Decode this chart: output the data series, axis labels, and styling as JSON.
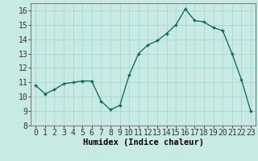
{
  "x": [
    0,
    1,
    2,
    3,
    4,
    5,
    6,
    7,
    8,
    9,
    10,
    11,
    12,
    13,
    14,
    15,
    16,
    17,
    18,
    19,
    20,
    21,
    22,
    23
  ],
  "y": [
    10.8,
    10.2,
    10.5,
    10.9,
    11.0,
    11.1,
    11.1,
    9.7,
    9.1,
    9.4,
    11.5,
    13.0,
    13.6,
    13.9,
    14.4,
    15.0,
    16.1,
    15.3,
    15.2,
    14.8,
    14.6,
    13.0,
    11.2,
    9.0
  ],
  "x_labels": [
    "0",
    "1",
    "2",
    "3",
    "4",
    "5",
    "6",
    "7",
    "8",
    "9",
    "10",
    "11",
    "12",
    "13",
    "14",
    "15",
    "16",
    "17",
    "18",
    "19",
    "20",
    "21",
    "22",
    "23"
  ],
  "xlabel": "Humidex (Indice chaleur)",
  "ylim": [
    8,
    16.5
  ],
  "yticks": [
    8,
    9,
    10,
    11,
    12,
    13,
    14,
    15,
    16
  ],
  "background_color": "#c8eae4",
  "grid_color": "#a8d8d0",
  "line_color": "#006655",
  "marker_color": "#006655",
  "xlabel_fontsize": 7.5,
  "tick_fontsize": 7
}
